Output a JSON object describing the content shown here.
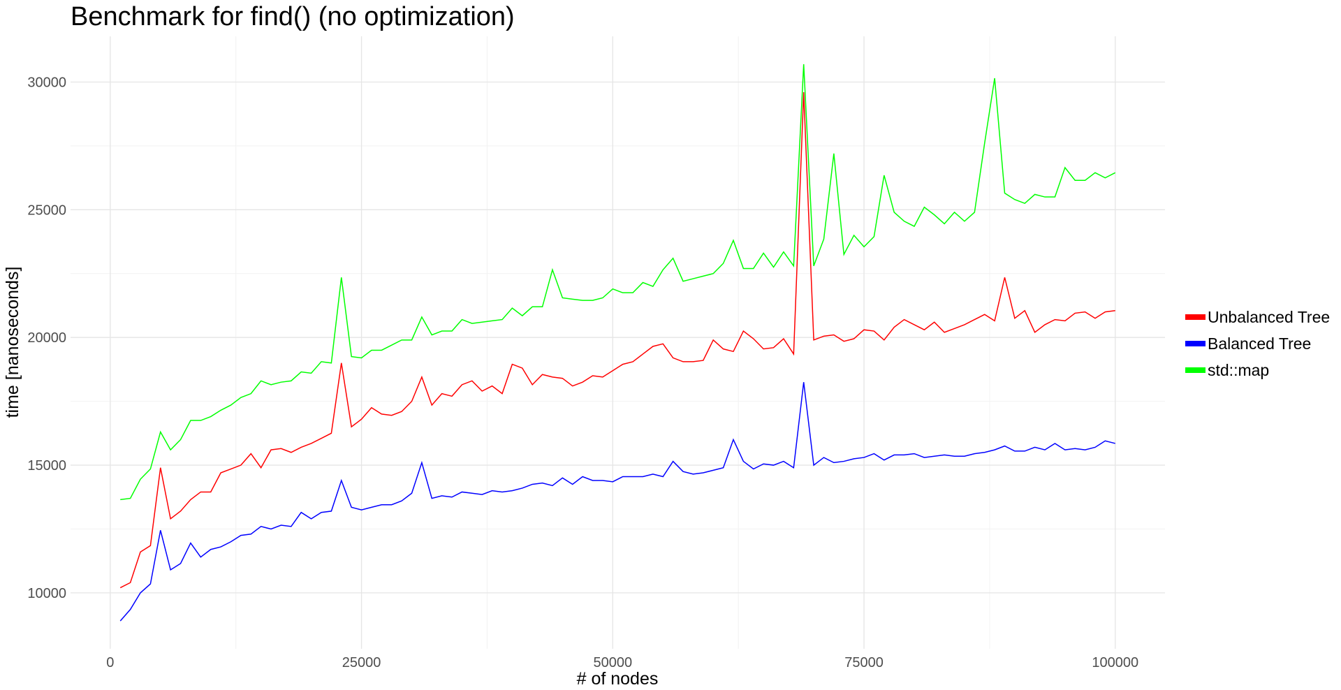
{
  "chart_data": {
    "type": "line",
    "title": "Benchmark for find() (no optimization)",
    "x_label": "# of nodes",
    "y_label": "time [nanoseconds]",
    "x": [
      1000,
      2000,
      3000,
      4000,
      5000,
      6000,
      7000,
      8000,
      9000,
      10000,
      11000,
      12000,
      13000,
      14000,
      15000,
      16000,
      17000,
      18000,
      19000,
      20000,
      21000,
      22000,
      23000,
      24000,
      25000,
      26000,
      27000,
      28000,
      29000,
      30000,
      31000,
      32000,
      33000,
      34000,
      35000,
      36000,
      37000,
      38000,
      39000,
      40000,
      41000,
      42000,
      43000,
      44000,
      45000,
      46000,
      47000,
      48000,
      49000,
      50000,
      51000,
      52000,
      53000,
      54000,
      55000,
      56000,
      57000,
      58000,
      59000,
      60000,
      61000,
      62000,
      63000,
      64000,
      65000,
      66000,
      67000,
      68000,
      69000,
      70000,
      71000,
      72000,
      73000,
      74000,
      75000,
      76000,
      77000,
      78000,
      79000,
      80000,
      81000,
      82000,
      83000,
      84000,
      85000,
      86000,
      87000,
      88000,
      89000,
      90000,
      91000,
      92000,
      93000,
      94000,
      95000,
      96000,
      97000,
      98000,
      99000,
      100000
    ],
    "series": [
      {
        "name": "Unbalanced Tree",
        "color": "#ff0000",
        "values": [
          10200,
          10400,
          11600,
          11850,
          14900,
          12900,
          13200,
          13650,
          13950,
          13950,
          14700,
          14850,
          15000,
          15450,
          14900,
          15600,
          15650,
          15500,
          15700,
          15850,
          16050,
          16250,
          19000,
          16500,
          16800,
          17250,
          17000,
          16950,
          17100,
          17500,
          18450,
          17350,
          17800,
          17700,
          18150,
          18300,
          17900,
          18100,
          17800,
          18950,
          18800,
          18150,
          18550,
          18450,
          18400,
          18100,
          18250,
          18500,
          18450,
          18700,
          18950,
          19050,
          19350,
          19650,
          19750,
          19200,
          19050,
          19050,
          19100,
          19900,
          19550,
          19450,
          20250,
          19950,
          19550,
          19600,
          19950,
          19350,
          29600,
          19900,
          20050,
          20100,
          19850,
          19950,
          20300,
          20250,
          19900,
          20400,
          20700,
          20500,
          20300,
          20600,
          20200,
          20350,
          20500,
          20700,
          20900,
          20650,
          22350,
          20750,
          21050,
          20200,
          20500,
          20700,
          20650,
          20950,
          21000,
          20750,
          21000,
          21050
        ]
      },
      {
        "name": "Balanced Tree",
        "color": "#0000ff",
        "values": [
          8900,
          9350,
          10000,
          10350,
          12450,
          10900,
          11150,
          11950,
          11400,
          11700,
          11800,
          12000,
          12250,
          12300,
          12600,
          12500,
          12650,
          12600,
          13150,
          12900,
          13150,
          13200,
          14400,
          13350,
          13250,
          13350,
          13450,
          13450,
          13600,
          13900,
          15100,
          13700,
          13800,
          13750,
          13950,
          13900,
          13850,
          14000,
          13950,
          14000,
          14100,
          14250,
          14300,
          14200,
          14500,
          14250,
          14550,
          14400,
          14400,
          14350,
          14550,
          14550,
          14550,
          14650,
          14550,
          15150,
          14750,
          14650,
          14700,
          14800,
          14900,
          16000,
          15150,
          14850,
          15050,
          15000,
          15150,
          14900,
          18250,
          15000,
          15300,
          15100,
          15150,
          15250,
          15300,
          15450,
          15200,
          15400,
          15400,
          15450,
          15300,
          15350,
          15400,
          15350,
          15350,
          15450,
          15500,
          15600,
          15750,
          15550,
          15550,
          15700,
          15600,
          15850,
          15600,
          15650,
          15600,
          15700,
          15950,
          15850
        ]
      },
      {
        "name": "std::map",
        "color": "#00ff00",
        "values": [
          13650,
          13700,
          14450,
          14850,
          16300,
          15600,
          16000,
          16750,
          16750,
          16900,
          17150,
          17350,
          17650,
          17800,
          18300,
          18150,
          18250,
          18300,
          18650,
          18600,
          19050,
          19000,
          22350,
          19250,
          19200,
          19500,
          19500,
          19700,
          19900,
          19900,
          20800,
          20100,
          20250,
          20250,
          20700,
          20550,
          20600,
          20650,
          20700,
          21150,
          20850,
          21200,
          21200,
          22650,
          21550,
          21500,
          21450,
          21450,
          21550,
          21900,
          21750,
          21750,
          22150,
          22000,
          22650,
          23100,
          22200,
          22300,
          22400,
          22500,
          22900,
          23800,
          22700,
          22700,
          23300,
          22750,
          23350,
          22800,
          30700,
          22800,
          23850,
          27200,
          23250,
          24000,
          23550,
          23950,
          26350,
          24900,
          24550,
          24350,
          25100,
          24800,
          24450,
          24900,
          24550,
          24900,
          27600,
          30150,
          25650,
          25400,
          25250,
          25600,
          25500,
          25500,
          26650,
          26150,
          26150,
          26450,
          26250,
          26450
        ]
      }
    ],
    "xlim": [
      -3950,
      104950
    ],
    "ylim": [
      7810,
      31790
    ],
    "xticks": [
      0,
      25000,
      50000,
      75000,
      100000
    ],
    "yticks": [
      10000,
      15000,
      20000,
      25000,
      30000
    ],
    "xminorticks": [
      12500,
      37500,
      62500,
      87500
    ],
    "yminorticks": [
      12500,
      17500,
      22500,
      27500
    ],
    "grid": true,
    "legend": "right"
  }
}
